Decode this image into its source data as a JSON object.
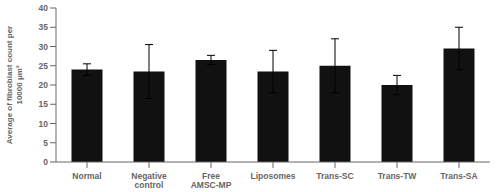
{
  "chart_data": {
    "type": "bar",
    "categories": [
      "Normal",
      "Negative\ncontrol",
      "Free\nAMSC-MP",
      "Liposomes",
      "Trans-SC",
      "Trans-TW",
      "Trans-SA"
    ],
    "values": [
      24.0,
      23.5,
      26.5,
      23.5,
      25.0,
      20.0,
      29.5
    ],
    "errors": [
      1.5,
      7.0,
      1.2,
      5.5,
      7.0,
      2.5,
      5.5
    ],
    "color": "#111111",
    "ylabel": "Average of fibroblast count per\n10000 μm²",
    "ylim": [
      0,
      40
    ],
    "yticks": [
      0,
      5,
      10,
      15,
      20,
      25,
      30,
      35,
      40
    ],
    "grid": false
  }
}
